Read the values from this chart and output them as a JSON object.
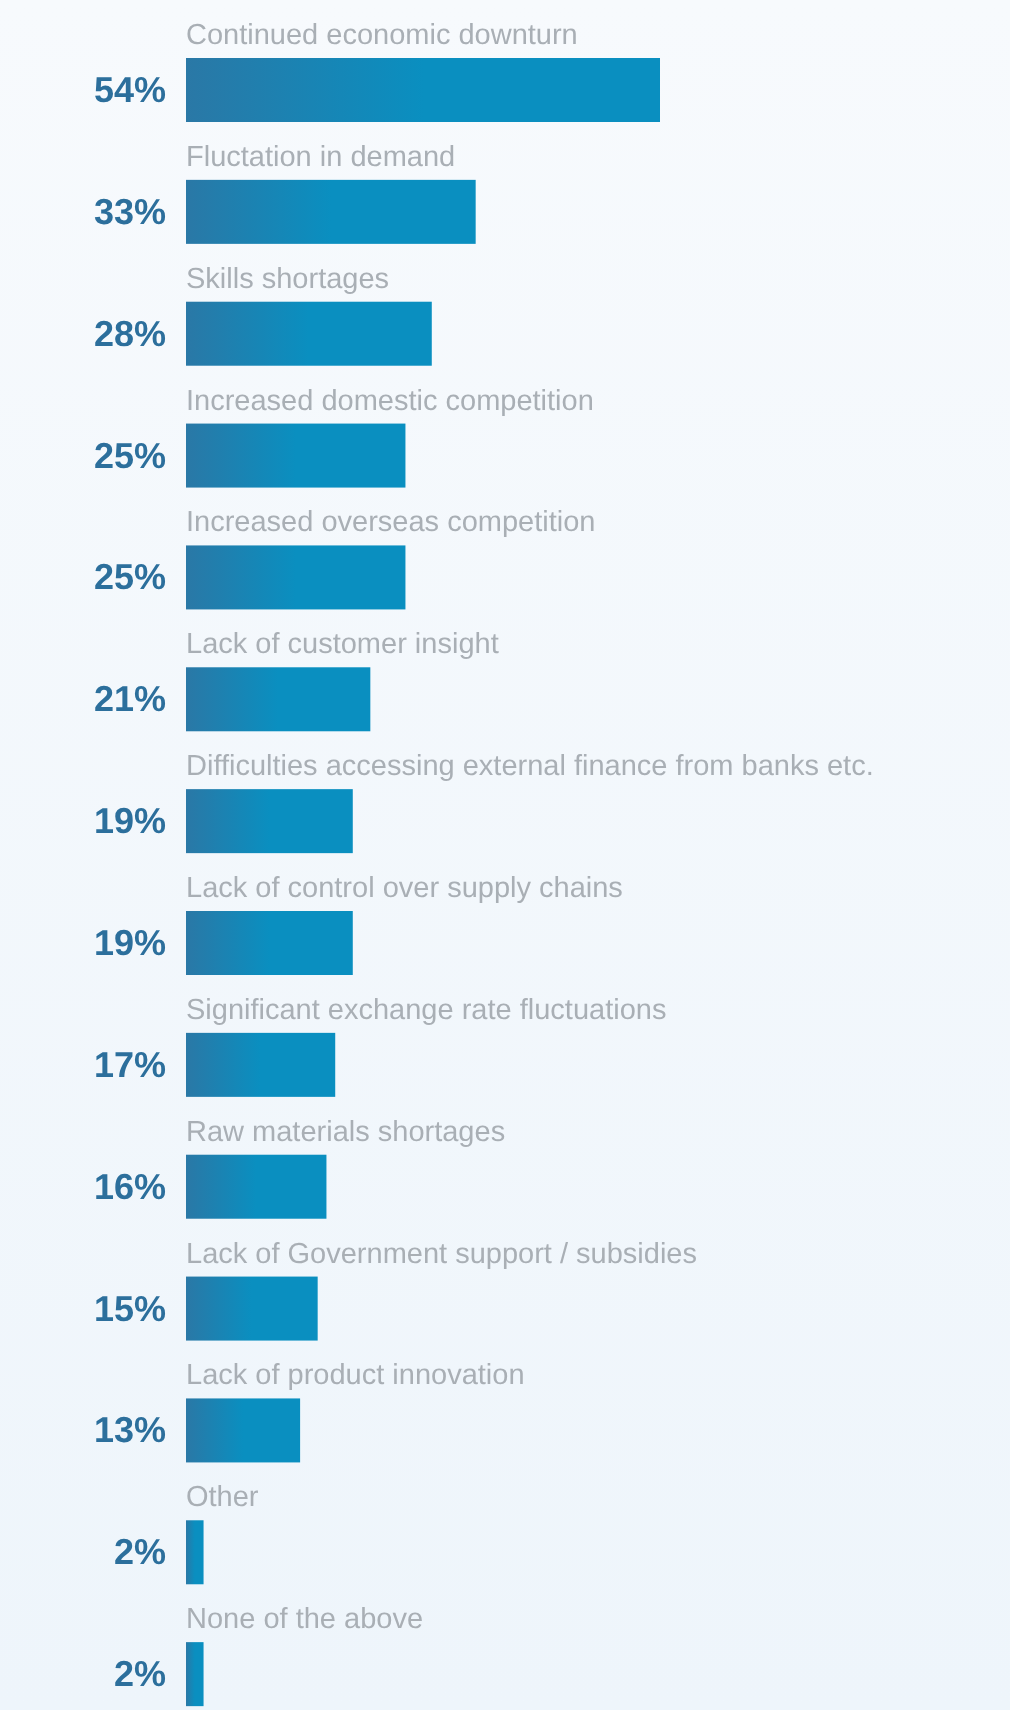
{
  "chart_data": {
    "type": "bar",
    "orientation": "horizontal",
    "color": "#0a8fc0",
    "categories": [
      "Continued economic downturn",
      "Fluctation in demand",
      "Skills shortages",
      "Increased domestic competition",
      "Increased overseas competition",
      "Lack of customer insight",
      "Difficulties accessing external finance from banks etc.",
      "Lack of control over supply chains",
      "Significant exchange rate fluctuations",
      "Raw materials shortages",
      "Lack of Government support / subsidies",
      "Lack of product innovation",
      "Other",
      "None of the above"
    ],
    "values": [
      54,
      33,
      28,
      25,
      25,
      21,
      19,
      19,
      17,
      16,
      15,
      13,
      2,
      2
    ],
    "value_labels": [
      "54%",
      "33%",
      "28%",
      "25%",
      "25%",
      "21%",
      "19%",
      "19%",
      "17%",
      "16%",
      "15%",
      "13%",
      "2%",
      "2%"
    ]
  }
}
